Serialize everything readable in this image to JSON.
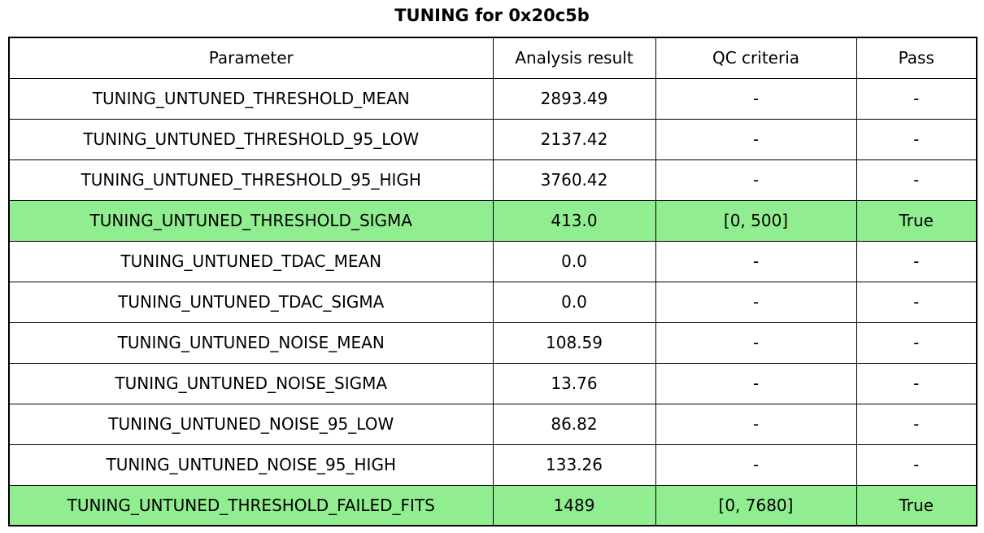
{
  "colors": {
    "highlight_green": "#90EE90",
    "border": "#000000",
    "background": "#FFFFFF",
    "text": "#000000"
  },
  "chart_data": {
    "type": "table",
    "title": "TUNING for 0x20c5b",
    "columns": [
      "Parameter",
      "Analysis result",
      "QC criteria",
      "Pass"
    ],
    "rows": [
      {
        "parameter": "TUNING_UNTUNED_THRESHOLD_MEAN",
        "analysis_result": "2893.49",
        "qc_criteria": "-",
        "pass": "-",
        "highlighted": false
      },
      {
        "parameter": "TUNING_UNTUNED_THRESHOLD_95_LOW",
        "analysis_result": "2137.42",
        "qc_criteria": "-",
        "pass": "-",
        "highlighted": false
      },
      {
        "parameter": "TUNING_UNTUNED_THRESHOLD_95_HIGH",
        "analysis_result": "3760.42",
        "qc_criteria": "-",
        "pass": "-",
        "highlighted": false
      },
      {
        "parameter": "TUNING_UNTUNED_THRESHOLD_SIGMA",
        "analysis_result": "413.0",
        "qc_criteria": "[0, 500]",
        "pass": "True",
        "highlighted": true
      },
      {
        "parameter": "TUNING_UNTUNED_TDAC_MEAN",
        "analysis_result": "0.0",
        "qc_criteria": "-",
        "pass": "-",
        "highlighted": false
      },
      {
        "parameter": "TUNING_UNTUNED_TDAC_SIGMA",
        "analysis_result": "0.0",
        "qc_criteria": "-",
        "pass": "-",
        "highlighted": false
      },
      {
        "parameter": "TUNING_UNTUNED_NOISE_MEAN",
        "analysis_result": "108.59",
        "qc_criteria": "-",
        "pass": "-",
        "highlighted": false
      },
      {
        "parameter": "TUNING_UNTUNED_NOISE_SIGMA",
        "analysis_result": "13.76",
        "qc_criteria": "-",
        "pass": "-",
        "highlighted": false
      },
      {
        "parameter": "TUNING_UNTUNED_NOISE_95_LOW",
        "analysis_result": "86.82",
        "qc_criteria": "-",
        "pass": "-",
        "highlighted": false
      },
      {
        "parameter": "TUNING_UNTUNED_NOISE_95_HIGH",
        "analysis_result": "133.26",
        "qc_criteria": "-",
        "pass": "-",
        "highlighted": false
      },
      {
        "parameter": "TUNING_UNTUNED_THRESHOLD_FAILED_FITS",
        "analysis_result": "1489",
        "qc_criteria": "[0, 7680]",
        "pass": "True",
        "highlighted": true
      }
    ]
  }
}
